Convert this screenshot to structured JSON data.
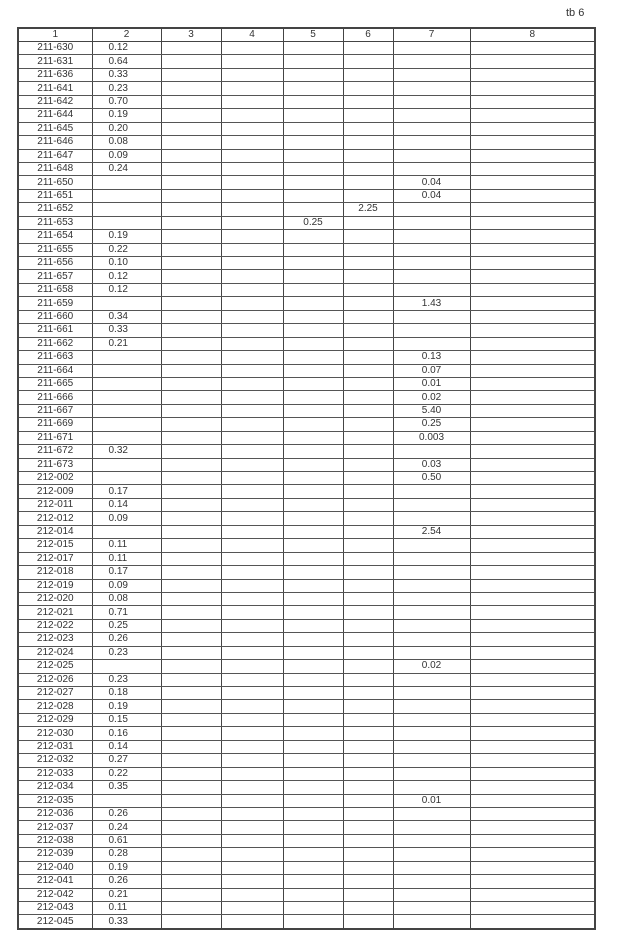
{
  "page_mark": "tb 6",
  "columns": [
    "1",
    "2",
    "3",
    "4",
    "5",
    "6",
    "7",
    "8"
  ],
  "rows": [
    [
      "211-630",
      "0.12",
      "",
      "",
      "",
      "",
      "",
      ""
    ],
    [
      "211-631",
      "0.64",
      "",
      "",
      "",
      "",
      "",
      ""
    ],
    [
      "211-636",
      "0.33",
      "",
      "",
      "",
      "",
      "",
      ""
    ],
    [
      "211-641",
      "0.23",
      "",
      "",
      "",
      "",
      "",
      ""
    ],
    [
      "211-642",
      "0.70",
      "",
      "",
      "",
      "",
      "",
      ""
    ],
    [
      "211-644",
      "0.19",
      "",
      "",
      "",
      "",
      "",
      ""
    ],
    [
      "211-645",
      "0.20",
      "",
      "",
      "",
      "",
      "",
      ""
    ],
    [
      "211-646",
      "0.08",
      "",
      "",
      "",
      "",
      "",
      ""
    ],
    [
      "211-647",
      "0.09",
      "",
      "",
      "",
      "",
      "",
      ""
    ],
    [
      "211-648",
      "0.24",
      "",
      "",
      "",
      "",
      "",
      ""
    ],
    [
      "211-650",
      "",
      "",
      "",
      "",
      "",
      "0.04",
      ""
    ],
    [
      "211-651",
      "",
      "",
      "",
      "",
      "",
      "0.04",
      ""
    ],
    [
      "211-652",
      "",
      "",
      "",
      "",
      "2.25",
      "",
      ""
    ],
    [
      "211-653",
      "",
      "",
      "",
      "0.25",
      "",
      "",
      ""
    ],
    [
      "211-654",
      "0.19",
      "",
      "",
      "",
      "",
      "",
      ""
    ],
    [
      "211-655",
      "0.22",
      "",
      "",
      "",
      "",
      "",
      ""
    ],
    [
      "211-656",
      "0.10",
      "",
      "",
      "",
      "",
      "",
      ""
    ],
    [
      "211-657",
      "0.12",
      "",
      "",
      "",
      "",
      "",
      ""
    ],
    [
      "211-658",
      "0.12",
      "",
      "",
      "",
      "",
      "",
      ""
    ],
    [
      "211-659",
      "",
      "",
      "",
      "",
      "",
      "1.43",
      ""
    ],
    [
      "211-660",
      "0.34",
      "",
      "",
      "",
      "",
      "",
      ""
    ],
    [
      "211-661",
      "0.33",
      "",
      "",
      "",
      "",
      "",
      ""
    ],
    [
      "211-662",
      "0.21",
      "",
      "",
      "",
      "",
      "",
      ""
    ],
    [
      "211-663",
      "",
      "",
      "",
      "",
      "",
      "0.13",
      ""
    ],
    [
      "211-664",
      "",
      "",
      "",
      "",
      "",
      "0.07",
      ""
    ],
    [
      "211-665",
      "",
      "",
      "",
      "",
      "",
      "0.01",
      ""
    ],
    [
      "211-666",
      "",
      "",
      "",
      "",
      "",
      "0.02",
      ""
    ],
    [
      "211-667",
      "",
      "",
      "",
      "",
      "",
      "5.40",
      ""
    ],
    [
      "211-669",
      "",
      "",
      "",
      "",
      "",
      "0.25",
      ""
    ],
    [
      "211-671",
      "",
      "",
      "",
      "",
      "",
      "0.003",
      ""
    ],
    [
      "211-672",
      "0.32",
      "",
      "",
      "",
      "",
      "",
      ""
    ],
    [
      "211-673",
      "",
      "",
      "",
      "",
      "",
      "0.03",
      ""
    ],
    [
      "212-002",
      "",
      "",
      "",
      "",
      "",
      "0.50",
      ""
    ],
    [
      "212-009",
      "0.17",
      "",
      "",
      "",
      "",
      "",
      ""
    ],
    [
      "212-011",
      "0.14",
      "",
      "",
      "",
      "",
      "",
      ""
    ],
    [
      "212-012",
      "0.09",
      "",
      "",
      "",
      "",
      "",
      ""
    ],
    [
      "212-014",
      "",
      "",
      "",
      "",
      "",
      "2.54",
      ""
    ],
    [
      "212-015",
      "0.11",
      "",
      "",
      "",
      "",
      "",
      ""
    ],
    [
      "212-017",
      "0.11",
      "",
      "",
      "",
      "",
      "",
      ""
    ],
    [
      "212-018",
      "0.17",
      "",
      "",
      "",
      "",
      "",
      ""
    ],
    [
      "212-019",
      "0.09",
      "",
      "",
      "",
      "",
      "",
      ""
    ],
    [
      "212-020",
      "0.08",
      "",
      "",
      "",
      "",
      "",
      ""
    ],
    [
      "212-021",
      "0.71",
      "",
      "",
      "",
      "",
      "",
      ""
    ],
    [
      "212-022",
      "0.25",
      "",
      "",
      "",
      "",
      "",
      ""
    ],
    [
      "212-023",
      "0.26",
      "",
      "",
      "",
      "",
      "",
      ""
    ],
    [
      "212-024",
      "0.23",
      "",
      "",
      "",
      "",
      "",
      ""
    ],
    [
      "212-025",
      "",
      "",
      "",
      "",
      "",
      "0.02",
      ""
    ],
    [
      "212-026",
      "0.23",
      "",
      "",
      "",
      "",
      "",
      ""
    ],
    [
      "212-027",
      "0.18",
      "",
      "",
      "",
      "",
      "",
      ""
    ],
    [
      "212-028",
      "0.19",
      "",
      "",
      "",
      "",
      "",
      ""
    ],
    [
      "212-029",
      "0.15",
      "",
      "",
      "",
      "",
      "",
      ""
    ],
    [
      "212-030",
      "0.16",
      "",
      "",
      "",
      "",
      "",
      ""
    ],
    [
      "212-031",
      "0.14",
      "",
      "",
      "",
      "",
      "",
      ""
    ],
    [
      "212-032",
      "0.27",
      "",
      "",
      "",
      "",
      "",
      ""
    ],
    [
      "212-033",
      "0.22",
      "",
      "",
      "",
      "",
      "",
      ""
    ],
    [
      "212-034",
      "0.35",
      "",
      "",
      "",
      "",
      "",
      ""
    ],
    [
      "212-035",
      "",
      "",
      "",
      "",
      "",
      "0.01",
      ""
    ],
    [
      "212-036",
      "0.26",
      "",
      "",
      "",
      "",
      "",
      ""
    ],
    [
      "212-037",
      "0.24",
      "",
      "",
      "",
      "",
      "",
      ""
    ],
    [
      "212-038",
      "0.61",
      "",
      "",
      "",
      "",
      "",
      ""
    ],
    [
      "212-039",
      "0.28",
      "",
      "",
      "",
      "",
      "",
      ""
    ],
    [
      "212-040",
      "0.19",
      "",
      "",
      "",
      "",
      "",
      ""
    ],
    [
      "212-041",
      "0.26",
      "",
      "",
      "",
      "",
      "",
      ""
    ],
    [
      "212-042",
      "0.21",
      "",
      "",
      "",
      "",
      "",
      ""
    ],
    [
      "212-043",
      "0.11",
      "",
      "",
      "",
      "",
      "",
      ""
    ],
    [
      "212-045",
      "0.33",
      "",
      "",
      "",
      "",
      "",
      ""
    ]
  ]
}
